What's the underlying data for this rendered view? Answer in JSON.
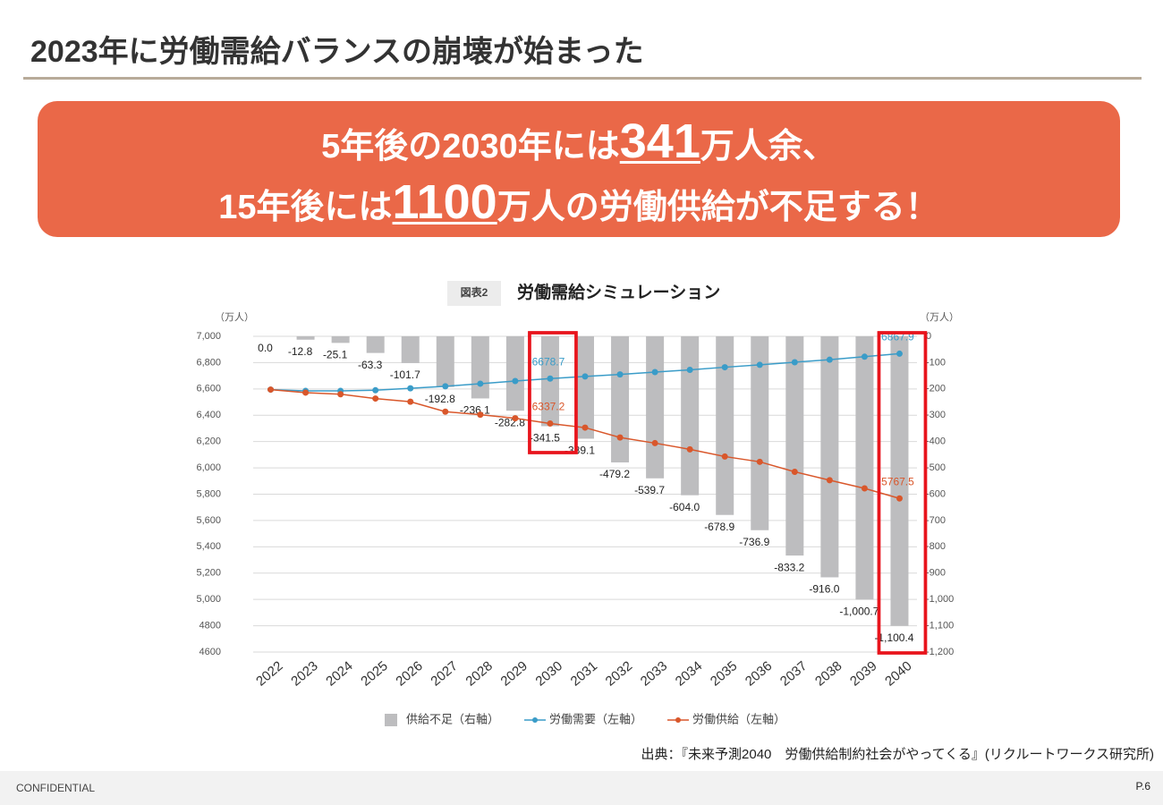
{
  "header": {
    "title": "2023年に労働需給バランスの崩壊が始まった"
  },
  "banner": {
    "line1": [
      "5年後の2030年には",
      "341",
      "万人余、"
    ],
    "line2": [
      "15年後には",
      "1100",
      "万人の労働供給が不足する！"
    ]
  },
  "chart_data": {
    "type": "combo",
    "badge": "図表2",
    "title": "労働需給シミュレーション",
    "y_unit": "（万人）",
    "y2_unit": "（万人）",
    "categories": [
      "2022",
      "2023",
      "2024",
      "2025",
      "2026",
      "2027",
      "2028",
      "2029",
      "2030",
      "2031",
      "2032",
      "2033",
      "2034",
      "2035",
      "2036",
      "2037",
      "2038",
      "2039",
      "2040"
    ],
    "ylim": [
      4600,
      7000
    ],
    "yticks": [
      4600,
      4800,
      {
        "value": 5000,
        "label": "5,000"
      },
      {
        "value": 5200,
        "label": "5,200"
      },
      {
        "value": 5400,
        "label": "5,400"
      },
      {
        "value": 5600,
        "label": "5,600"
      },
      {
        "value": 5800,
        "label": "5,800"
      },
      {
        "value": 6000,
        "label": "6,000"
      },
      {
        "value": 6200,
        "label": "6,200"
      },
      {
        "value": 6400,
        "label": "6,400"
      },
      {
        "value": 6600,
        "label": "6,600"
      },
      {
        "value": 6800,
        "label": "6,800"
      },
      {
        "value": 7000,
        "label": "7,000"
      }
    ],
    "y2lim": [
      -1200,
      0
    ],
    "y2ticks": [
      0,
      -100,
      -200,
      -300,
      -400,
      -500,
      -600,
      -700,
      -800,
      -900,
      {
        "value": -1000,
        "label": "-1,000"
      },
      {
        "value": -1100,
        "label": "-1,100"
      },
      {
        "value": -1200,
        "label": "-1,200"
      }
    ],
    "grid": true,
    "series": [
      {
        "name": "供給不足（右軸）",
        "type": "bar",
        "axis": "y2",
        "color": "#bdbdbf",
        "values": [
          0,
          -12.8,
          -25.1,
          -63.3,
          -101.7,
          -192.8,
          -236.1,
          -282.8,
          -341.5,
          -389.1,
          -479.2,
          -539.7,
          -604.0,
          -678.9,
          -736.9,
          -833.2,
          -916.0,
          -1000.7,
          -1100.4
        ],
        "value_labels": [
          "0.0",
          "-12.8",
          "-25.1",
          "-63.3",
          "-101.7",
          "-192.8",
          "-236.1",
          "-282.8",
          "-341.5",
          "-389.1",
          "-479.2",
          "-539.7",
          "-604.0",
          "-678.9",
          "-736.9",
          "-833.2",
          "-916.0",
          "-1,000.7",
          "-1,100.4"
        ]
      },
      {
        "name": "労働需要（左軸）",
        "type": "line",
        "color": "#3a9cc8",
        "values": [
          6595,
          6585,
          6585,
          6590,
          6605,
          6620,
          6640,
          6660,
          6678.7,
          6695,
          6710,
          6728,
          6745,
          6765,
          6783,
          6803,
          6822,
          6845,
          6867.9
        ],
        "value_labels": [
          null,
          null,
          null,
          null,
          null,
          null,
          null,
          null,
          "6678.7",
          null,
          null,
          null,
          null,
          null,
          null,
          null,
          null,
          null,
          "6867.9"
        ]
      },
      {
        "name": "労働供給（左軸）",
        "type": "line",
        "color": "#d9572b",
        "values": [
          6595,
          6572,
          6560,
          6527,
          6503,
          6427,
          6404,
          6377,
          6337.2,
          6306,
          6231,
          6188,
          6141,
          6086,
          6046,
          5970,
          5906,
          5844,
          5767.5
        ],
        "value_labels": [
          null,
          null,
          null,
          null,
          null,
          null,
          null,
          null,
          "6337.2",
          null,
          null,
          null,
          null,
          null,
          null,
          null,
          null,
          null,
          "5767.5"
        ]
      }
    ]
  },
  "source": "出典：『未来予測2040　労働供給制約社会がやってくる』(リクルートワークス研究所)",
  "footer": {
    "left": "CONFIDENTIAL",
    "right": "P.6"
  }
}
